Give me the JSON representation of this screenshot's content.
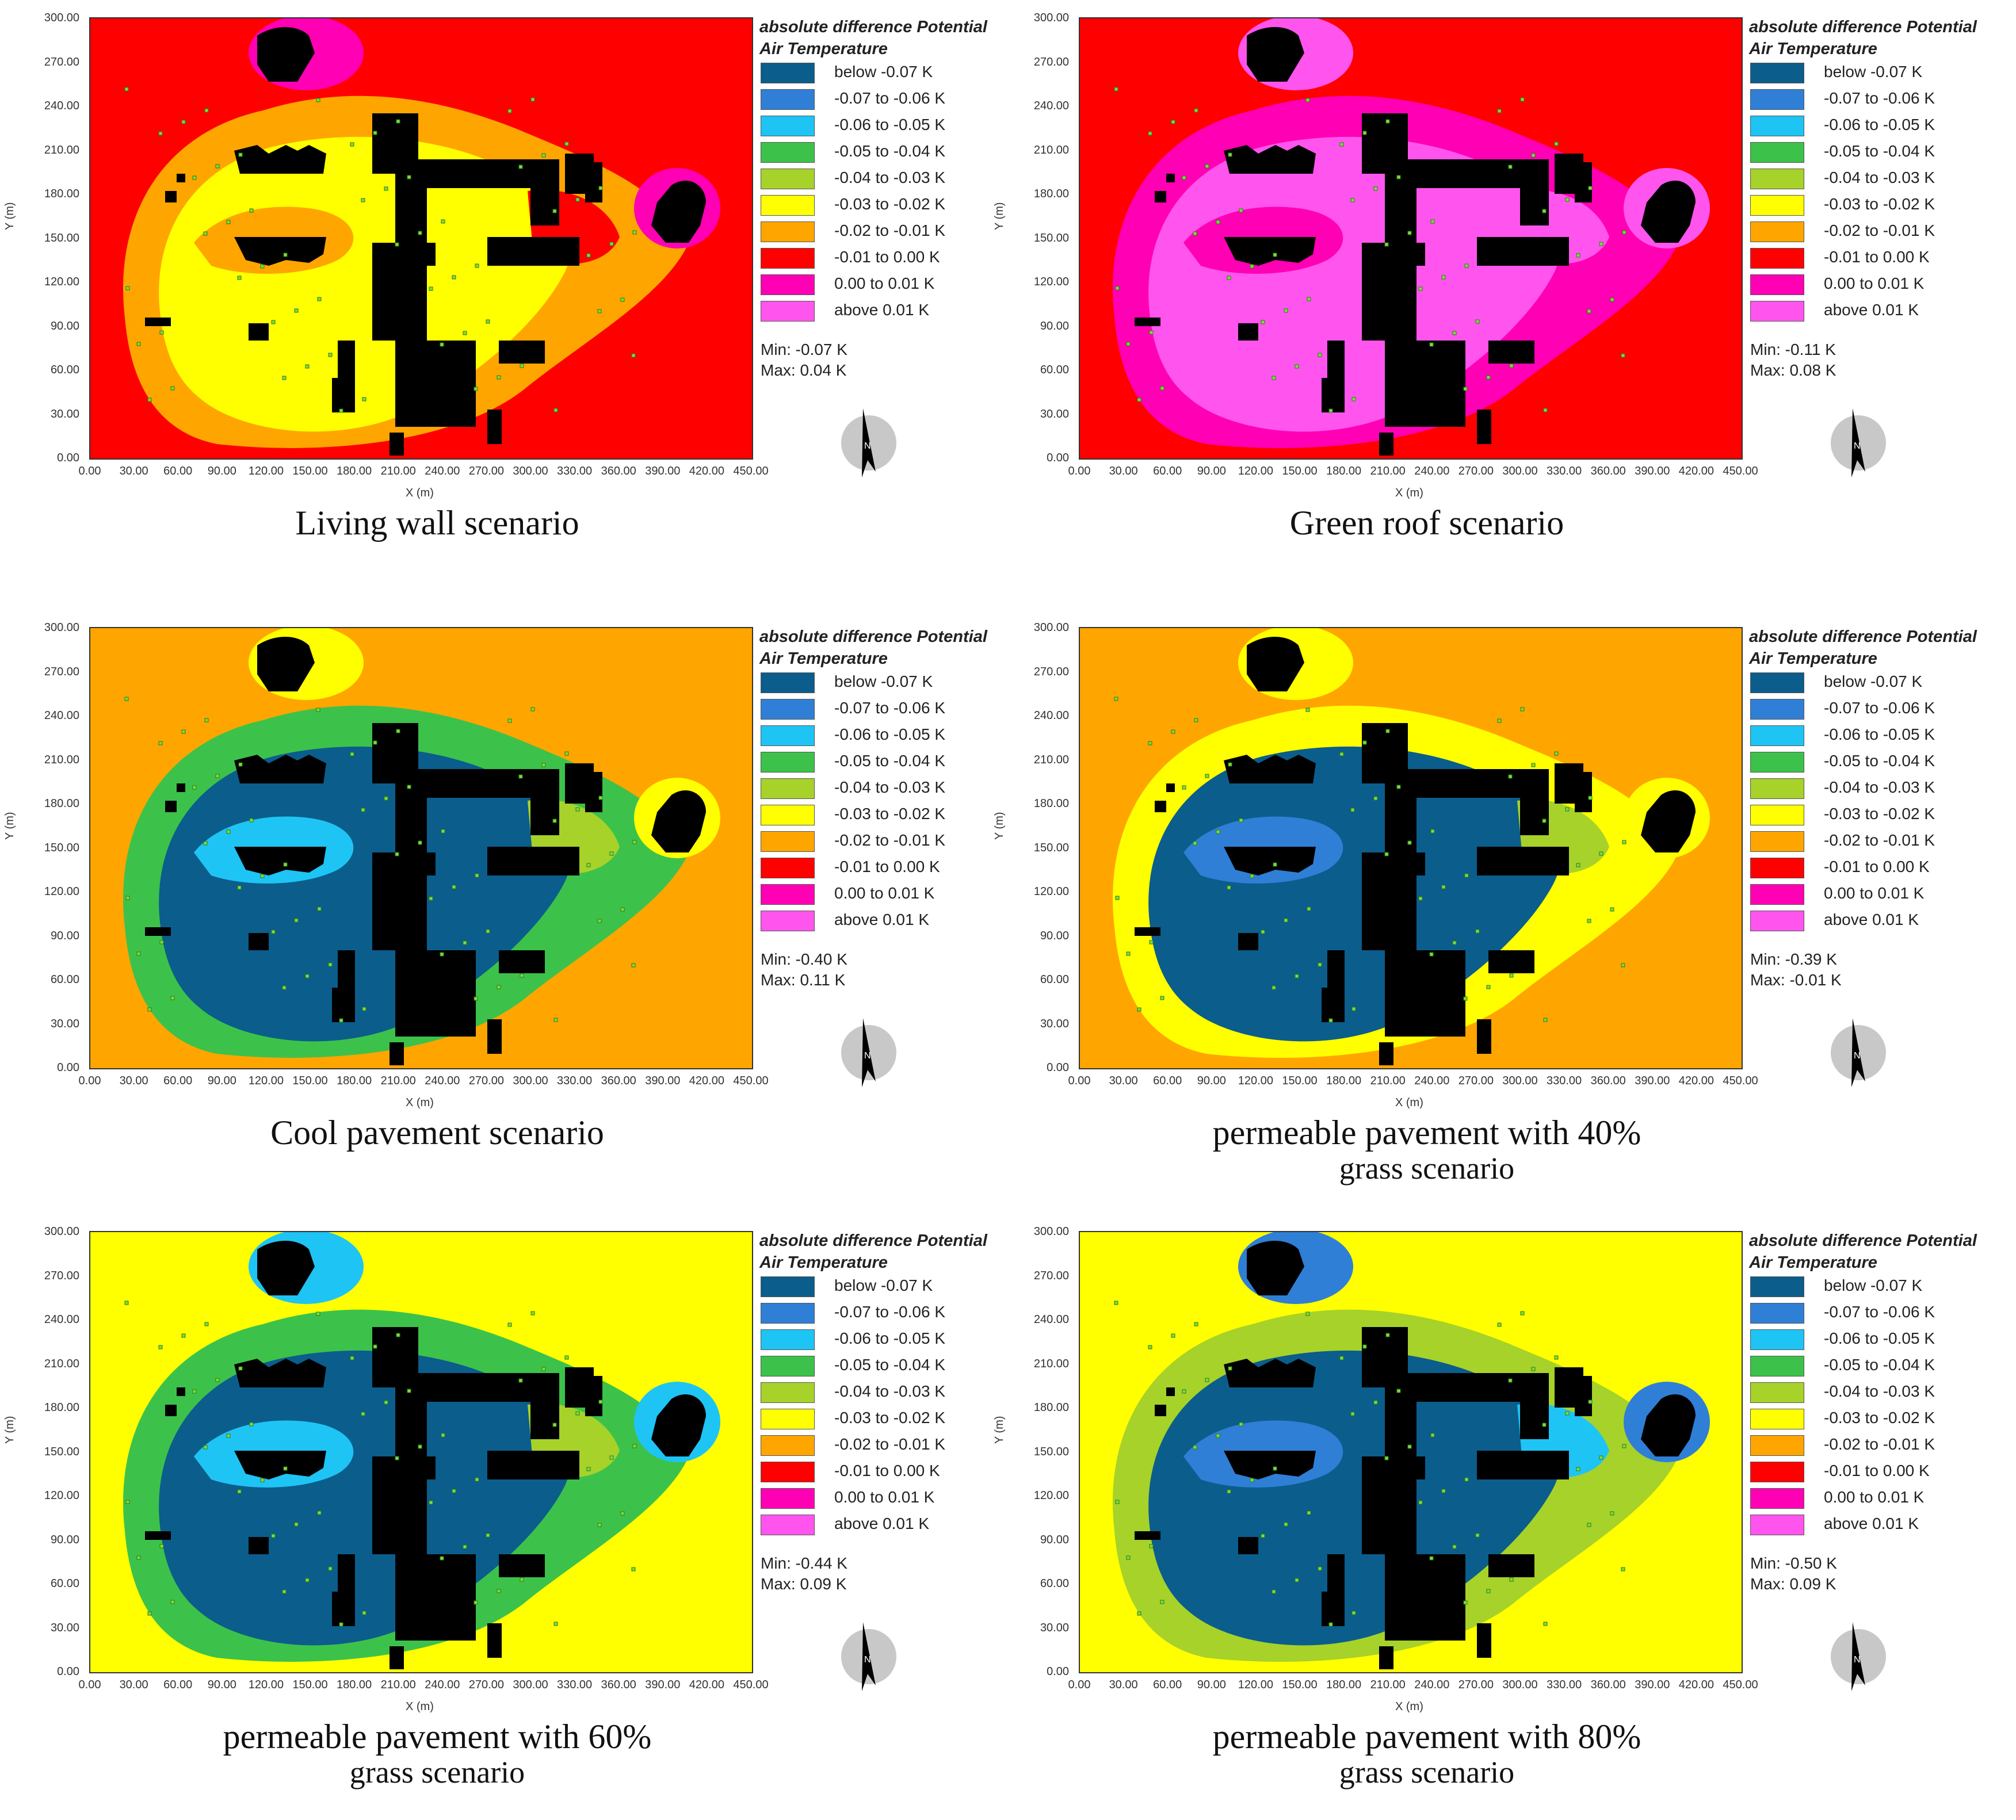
{
  "legend": {
    "title": "absolute difference Potential Air Temperature",
    "items": [
      {
        "label": "below -0.07 K",
        "color": "#0b5d8c"
      },
      {
        "label": "-0.07 to -0.06 K",
        "color": "#2f7fd6"
      },
      {
        "label": "-0.06 to -0.05 K",
        "color": "#1ec4f4"
      },
      {
        "label": "-0.05 to -0.04 K",
        "color": "#3cc24a"
      },
      {
        "label": "-0.04 to -0.03 K",
        "color": "#a6d22a"
      },
      {
        "label": "-0.03 to -0.02 K",
        "color": "#ffff00"
      },
      {
        "label": "-0.02 to -0.01 K",
        "color": "#ffa500"
      },
      {
        "label": "-0.01 to 0.00 K",
        "color": "#ff0000"
      },
      {
        "label": "0.00 to 0.01 K",
        "color": "#ff00b4"
      },
      {
        "label": "above 0.01 K",
        "color": "#ff55ee"
      }
    ]
  },
  "axes": {
    "y_ticks": [
      "300.00",
      "270.00",
      "240.00",
      "210.00",
      "180.00",
      "150.00",
      "120.00",
      "90.00",
      "60.00",
      "30.00",
      "0.00"
    ],
    "x_ticks": [
      "0.00",
      "30.00",
      "60.00",
      "90.00",
      "120.00",
      "150.00",
      "180.00",
      "210.00",
      "240.00",
      "270.00",
      "300.00",
      "330.00",
      "360.00",
      "390.00",
      "420.00",
      "450.00"
    ],
    "xlabel": "X (m)",
    "ylabel": "Y (m)"
  },
  "north_label": "N",
  "panels": [
    {
      "caption": "Living wall scenario",
      "caption2": "",
      "min": "Min: -0.07 K",
      "max": "Max: 0.04 K",
      "bg": "#ff0000",
      "zones": [
        "#ffa500",
        "#ffff00",
        "#ffa500",
        "#ff0000"
      ],
      "blob": "#ff00b4"
    },
    {
      "caption": "Green roof scenario",
      "caption2": "",
      "min": "Min: -0.11 K",
      "max": "Max: 0.08 K",
      "bg": "#ff0000",
      "zones": [
        "#ff00b4",
        "#ff55ee",
        "#ff00b4",
        "#ff55ee"
      ],
      "blob": "#ff55ee"
    },
    {
      "caption": "Cool pavement scenario",
      "caption2": "",
      "min": "Min: -0.40 K",
      "max": "Max: 0.11 K",
      "bg": "#ffa500",
      "zones": [
        "#3cc24a",
        "#0b5d8c",
        "#1ec4f4",
        "#a6d22a"
      ],
      "blob": "#ffff00"
    },
    {
      "caption": "permeable pavement with 40%",
      "caption2": "grass scenario",
      "min": "Min: -0.39 K",
      "max": "Max: -0.01 K",
      "bg": "#ffa500",
      "zones": [
        "#ffff00",
        "#0b5d8c",
        "#2f7fd6",
        "#a6d22a"
      ],
      "blob": "#ffff00"
    },
    {
      "caption": "permeable pavement with 60%",
      "caption2": "grass scenario",
      "min": "Min: -0.44 K",
      "max": "Max: 0.09 K",
      "bg": "#ffff00",
      "zones": [
        "#3cc24a",
        "#0b5d8c",
        "#1ec4f4",
        "#a6d22a"
      ],
      "blob": "#1ec4f4"
    },
    {
      "caption": "permeable pavement with 80%",
      "caption2": "grass scenario",
      "min": "Min: -0.50 K",
      "max": "Max: 0.09 K",
      "bg": "#ffff00",
      "zones": [
        "#a6d22a",
        "#0b5d8c",
        "#2f7fd6",
        "#1ec4f4"
      ],
      "blob": "#2f7fd6"
    }
  ]
}
